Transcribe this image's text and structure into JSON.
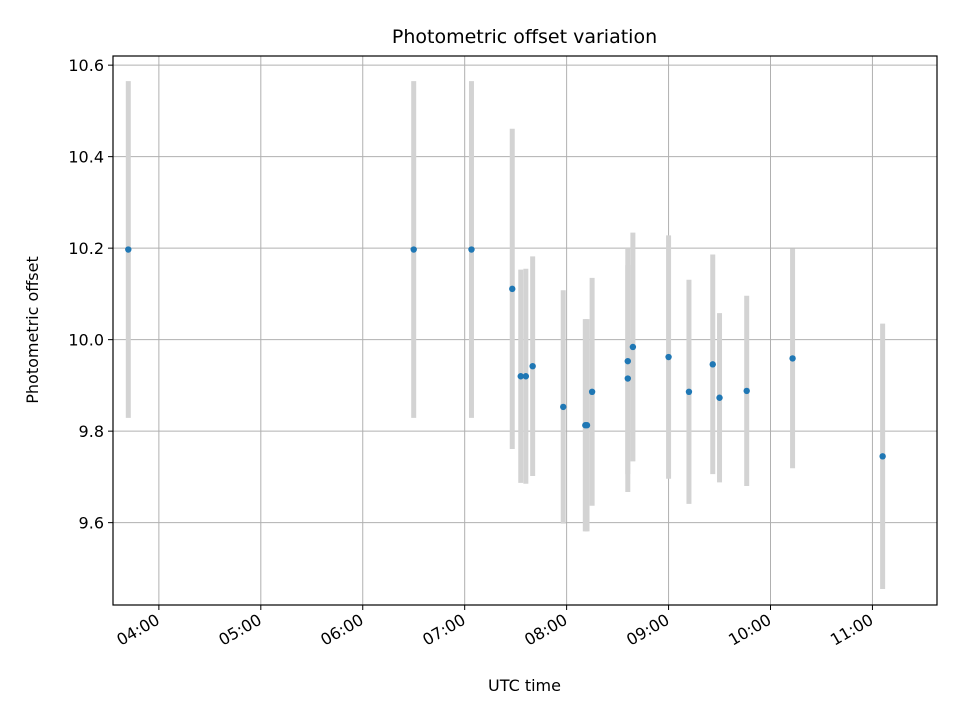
{
  "chart_data": {
    "type": "scatter",
    "title": "Photometric offset variation",
    "xlabel": "UTC time",
    "ylabel": "Photometric offset",
    "x_tick_labels": [
      "04:00",
      "05:00",
      "06:00",
      "07:00",
      "08:00",
      "09:00",
      "10:00",
      "11:00"
    ],
    "y_tick_labels": [
      "9.6",
      "9.8",
      "10.0",
      "10.2",
      "10.4",
      "10.6"
    ],
    "xlim": [
      "03:33",
      "11:38"
    ],
    "ylim": [
      9.42,
      10.62
    ],
    "grid": true,
    "colors": {
      "points": "#1f77b4",
      "errorbars": "#d3d3d3",
      "grid": "#b0b0b0"
    },
    "series": [
      {
        "x": [
          "03:42",
          "06:30",
          "07:04",
          "07:28",
          "07:33",
          "07:36",
          "07:40",
          "07:58",
          "08:11",
          "08:12",
          "08:15",
          "08:36",
          "08:36",
          "08:39",
          "09:00",
          "09:12",
          "09:26",
          "09:30",
          "09:46",
          "10:13",
          "11:06"
        ],
        "y": [
          10.197,
          10.197,
          10.197,
          10.111,
          9.92,
          9.92,
          9.942,
          9.853,
          9.813,
          9.813,
          9.886,
          9.915,
          9.953,
          9.984,
          9.962,
          9.886,
          9.946,
          9.873,
          9.888,
          9.959,
          9.745
        ],
        "yerr": [
          0.368,
          0.368,
          0.368,
          0.35,
          0.233,
          0.235,
          0.24,
          0.255,
          0.232,
          0.232,
          0.249,
          0.248,
          0.247,
          0.25,
          0.266,
          0.245,
          0.24,
          0.185,
          0.208,
          0.24,
          0.29
        ]
      }
    ]
  }
}
